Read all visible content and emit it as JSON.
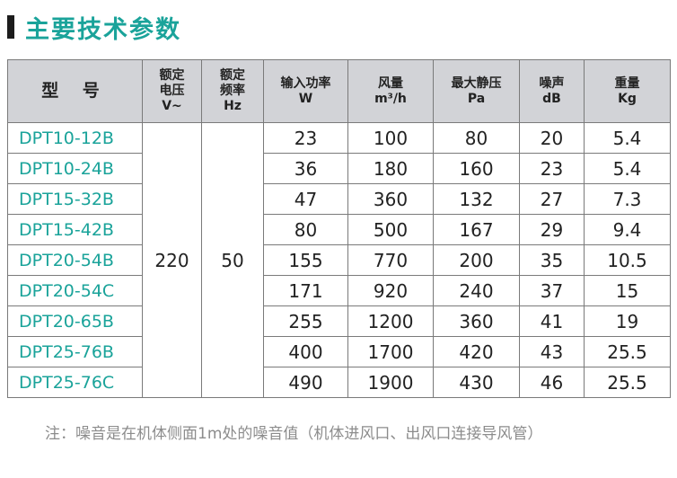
{
  "heading": "主要技术参数",
  "headers": {
    "model": "型 号",
    "voltage": [
      "额定",
      "电压",
      "V~"
    ],
    "frequency": [
      "额定",
      "频率",
      "Hz"
    ],
    "power": [
      "输入功率",
      "W"
    ],
    "airflow": [
      "风量",
      "m³/h"
    ],
    "pressure": [
      "最大静压",
      "Pa"
    ],
    "noise": [
      "噪声",
      "dB"
    ],
    "weight": [
      "重量",
      "Kg"
    ]
  },
  "voltage_value": "220",
  "frequency_value": "50",
  "rows": [
    {
      "model": "DPT10-12B",
      "power": "23",
      "airflow": "100",
      "pressure": "80",
      "noise": "20",
      "weight": "5.4"
    },
    {
      "model": "DPT10-24B",
      "power": "36",
      "airflow": "180",
      "pressure": "160",
      "noise": "23",
      "weight": "5.4"
    },
    {
      "model": "DPT15-32B",
      "power": "47",
      "airflow": "360",
      "pressure": "132",
      "noise": "27",
      "weight": "7.3"
    },
    {
      "model": "DPT15-42B",
      "power": "80",
      "airflow": "500",
      "pressure": "167",
      "noise": "29",
      "weight": "9.4"
    },
    {
      "model": "DPT20-54B",
      "power": "155",
      "airflow": "770",
      "pressure": "200",
      "noise": "35",
      "weight": "10.5"
    },
    {
      "model": "DPT20-54C",
      "power": "171",
      "airflow": "920",
      "pressure": "240",
      "noise": "37",
      "weight": "15"
    },
    {
      "model": "DPT20-65B",
      "power": "255",
      "airflow": "1200",
      "pressure": "360",
      "noise": "41",
      "weight": "19"
    },
    {
      "model": "DPT25-76B",
      "power": "400",
      "airflow": "1700",
      "pressure": "420",
      "noise": "43",
      "weight": "25.5"
    },
    {
      "model": "DPT25-76C",
      "power": "490",
      "airflow": "1900",
      "pressure": "430",
      "noise": "46",
      "weight": "25.5"
    }
  ],
  "note": "注：噪音是在机体侧面1m处的噪音值（机体进风口、出风口连接导风管）",
  "colors": {
    "accent": "#1aa39a",
    "header_bg": "#d2d3d7",
    "border": "#7a7a7a",
    "note": "#8c8c8c"
  }
}
